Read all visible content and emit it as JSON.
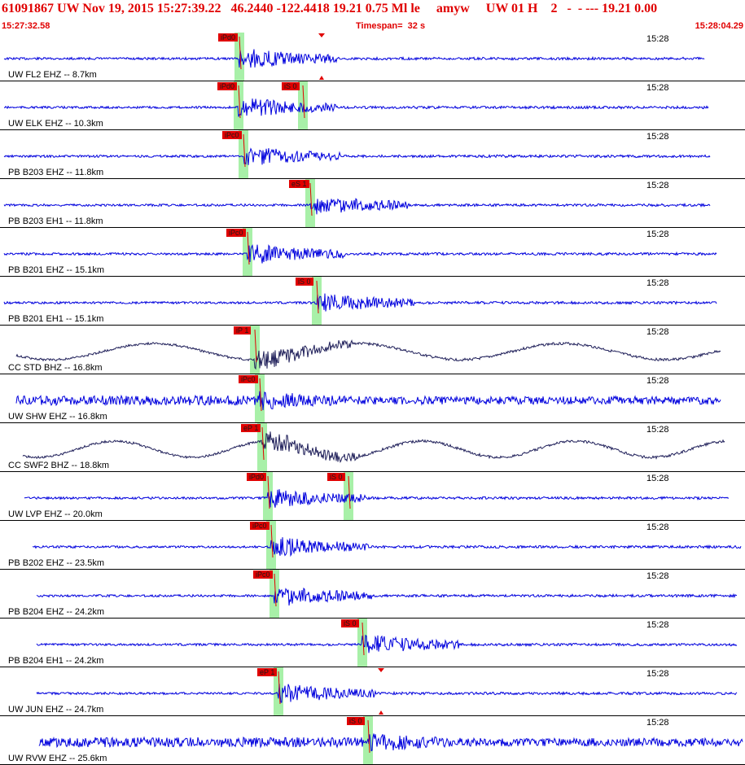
{
  "header": {
    "title": "61091867 UW Nov 19, 2015 15:27:39.22   46.2440 -122.4418 19.21 0.75 Ml le     amyw     UW 01 H    2   -  - --- 19.21 0.00",
    "start_time": "15:27:32.58",
    "timespan": "Timespan=  32 s",
    "end_time": "15:28:04.29"
  },
  "colors": {
    "trace_blue": "#0000dd",
    "trace_dark": "#20205a",
    "pick_red": "#e00000",
    "window_green": "#a8f0a8",
    "header_red": "#e00000"
  },
  "traces": [
    {
      "label": "UW FL2 EHZ -- 8.7km",
      "time": "15:28",
      "color": "blue",
      "picks": [
        {
          "label": "iPd0",
          "kind": "P"
        }
      ],
      "extra_marker": true
    },
    {
      "label": "UW ELK EHZ -- 10.3km",
      "time": "15:28",
      "color": "blue",
      "picks": [
        {
          "label": "iPd0",
          "kind": "P"
        },
        {
          "label": "iS 0",
          "kind": "S"
        }
      ]
    },
    {
      "label": "PB B203 EHZ -- 11.8km",
      "time": "15:28",
      "color": "blue",
      "picks": [
        {
          "label": "iPc0",
          "kind": "P"
        }
      ]
    },
    {
      "label": "PB B203 EH1 -- 11.8km",
      "time": "15:28",
      "color": "blue",
      "picks": [
        {
          "label": "eS 1",
          "kind": "S"
        }
      ]
    },
    {
      "label": "PB B201 EHZ -- 15.1km",
      "time": "15:28",
      "color": "blue",
      "picks": [
        {
          "label": "iPc0",
          "kind": "P"
        }
      ]
    },
    {
      "label": "PB B201 EH1 -- 15.1km",
      "time": "15:28",
      "color": "blue",
      "picks": [
        {
          "label": "iS 0",
          "kind": "S"
        }
      ]
    },
    {
      "label": "CC STD BHZ -- 16.8km",
      "time": "15:28",
      "color": "dark",
      "picks": [
        {
          "label": "iP 1",
          "kind": "P"
        }
      ]
    },
    {
      "label": "UW SHW EHZ -- 16.8km",
      "time": "15:28",
      "color": "blue",
      "picks": [
        {
          "label": "iPc0",
          "kind": "P"
        }
      ]
    },
    {
      "label": "CC SWF2 BHZ -- 18.8km",
      "time": "15:28",
      "color": "dark",
      "picks": [
        {
          "label": "eP 1",
          "kind": "P"
        }
      ]
    },
    {
      "label": "UW LVP EHZ -- 20.0km",
      "time": "15:28",
      "color": "blue",
      "picks": [
        {
          "label": "iPd0",
          "kind": "P"
        },
        {
          "label": "iS 0",
          "kind": "S"
        }
      ]
    },
    {
      "label": "PB B202 EHZ -- 23.5km",
      "time": "15:28",
      "color": "blue",
      "picks": [
        {
          "label": "iPc0",
          "kind": "P"
        }
      ]
    },
    {
      "label": "PB B204 EHZ -- 24.2km",
      "time": "15:28",
      "color": "blue",
      "picks": [
        {
          "label": "iPc0",
          "kind": "P"
        }
      ]
    },
    {
      "label": "PB B204 EH1 -- 24.2km",
      "time": "15:28",
      "color": "blue",
      "picks": [
        {
          "label": "iS 0",
          "kind": "S"
        }
      ]
    },
    {
      "label": "UW JUN EHZ -- 24.7km",
      "time": "15:28",
      "color": "blue",
      "picks": [
        {
          "label": "eP 1",
          "kind": "P"
        }
      ],
      "extra_marker": true
    },
    {
      "label": "UW RVW EHZ -- 25.6km",
      "time": "15:28",
      "color": "blue",
      "picks": [
        {
          "label": "iS 0",
          "kind": "S"
        }
      ]
    }
  ]
}
